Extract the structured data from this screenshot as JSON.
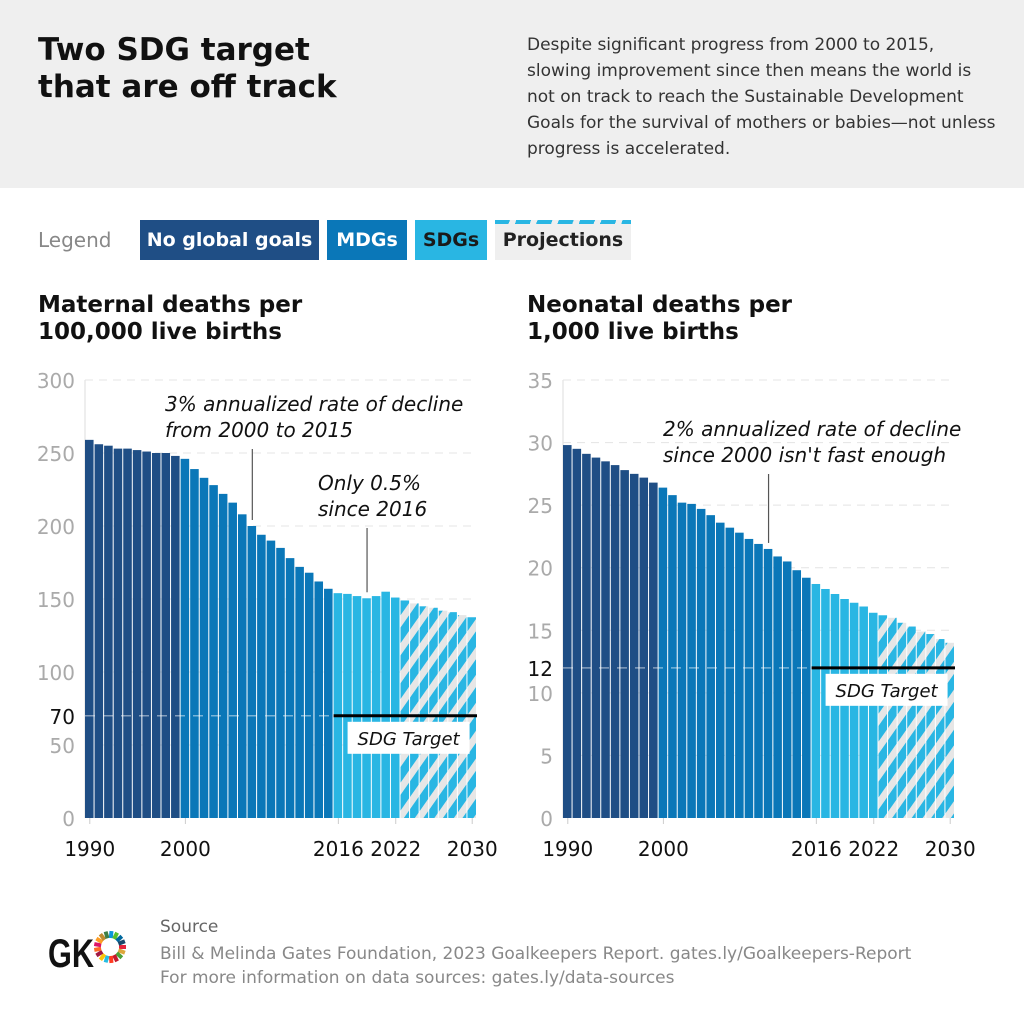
{
  "header": {
    "title": "Two SDG target that are off track",
    "description": "Despite significant progress from 2000 to 2015, slowing improvement since then means the world is not on track to reach the Sustainable Development Goals for the survival of mothers or babies—not unless progress is accelerated."
  },
  "legend": {
    "label": "Legend",
    "items": [
      {
        "label": "No global goals",
        "color": "#1f4e85"
      },
      {
        "label": "MDGs",
        "color": "#0a77b8"
      },
      {
        "label": "SDGs",
        "color": "#29b6e3"
      },
      {
        "label": "Projections",
        "color": "#29b6e3",
        "pattern": "hatched"
      }
    ]
  },
  "colors": {
    "no_goals": "#1f4e85",
    "mdgs": "#0a77b8",
    "sdgs": "#29b6e3",
    "projection_bg": "#e6e6e6",
    "target": "#000000"
  },
  "chart_data": [
    {
      "type": "bar",
      "title": "Maternal deaths per 100,000 live births",
      "x": [
        1990,
        1991,
        1992,
        1993,
        1994,
        1995,
        1996,
        1997,
        1998,
        1999,
        2000,
        2001,
        2002,
        2003,
        2004,
        2005,
        2006,
        2007,
        2008,
        2009,
        2010,
        2011,
        2012,
        2013,
        2014,
        2015,
        2016,
        2017,
        2018,
        2019,
        2020,
        2021,
        2022,
        2023,
        2024,
        2025,
        2026,
        2027,
        2028,
        2029,
        2030
      ],
      "values": [
        259,
        256,
        255,
        253,
        253,
        252,
        251,
        250,
        250,
        248,
        246,
        239,
        233,
        228,
        222,
        216,
        208,
        200,
        194,
        190,
        185,
        178,
        172,
        168,
        162,
        157,
        154,
        153.5,
        152,
        150.5,
        152,
        155,
        151,
        149,
        147,
        145,
        144,
        142,
        141,
        139,
        137.5
      ],
      "eras": {
        "no_goals": [
          1990,
          1999
        ],
        "mdgs": [
          2000,
          2015
        ],
        "sdgs": [
          2016,
          2022
        ],
        "projections": [
          2023,
          2030
        ]
      },
      "ylim": [
        0,
        300
      ],
      "yticks": [
        "0",
        "50",
        "100",
        "150",
        "200",
        "250",
        "300"
      ],
      "xticks": [
        "1990",
        "2000",
        "2016",
        "2022",
        "2030"
      ],
      "target": {
        "value": 70,
        "label": "70",
        "name": "SDG Target"
      },
      "annotations": [
        {
          "year": 2007,
          "text": [
            "3% annualized rate of decline",
            "from 2000 to 2015"
          ]
        },
        {
          "year": 2019,
          "text": [
            "Only 0.5%",
            "since 2016"
          ]
        }
      ],
      "grid": true
    },
    {
      "type": "bar",
      "title": "Neonatal deaths per 1,000 live births",
      "x": [
        1990,
        1991,
        1992,
        1993,
        1994,
        1995,
        1996,
        1997,
        1998,
        1999,
        2000,
        2001,
        2002,
        2003,
        2004,
        2005,
        2006,
        2007,
        2008,
        2009,
        2010,
        2011,
        2012,
        2013,
        2014,
        2015,
        2016,
        2017,
        2018,
        2019,
        2020,
        2021,
        2022,
        2023,
        2024,
        2025,
        2026,
        2027,
        2028,
        2029,
        2030
      ],
      "values": [
        29.8,
        29.5,
        29.1,
        28.8,
        28.5,
        28.2,
        27.8,
        27.5,
        27.2,
        26.8,
        26.4,
        25.8,
        25.2,
        25.1,
        24.7,
        24.2,
        23.6,
        23.2,
        22.8,
        22.3,
        21.9,
        21.5,
        20.9,
        20.5,
        19.8,
        19.2,
        18.7,
        18.3,
        17.9,
        17.5,
        17.2,
        16.9,
        16.4,
        16.2,
        16.0,
        15.6,
        15.3,
        14.9,
        14.7,
        14.3,
        14.0
      ],
      "eras": {
        "no_goals": [
          1990,
          1999
        ],
        "mdgs": [
          2000,
          2015
        ],
        "sdgs": [
          2016,
          2022
        ],
        "projections": [
          2023,
          2030
        ]
      },
      "ylim": [
        0,
        35
      ],
      "yticks": [
        "0",
        "5",
        "10",
        "15",
        "20",
        "25",
        "30",
        "35"
      ],
      "xticks": [
        "1990",
        "2000",
        "2016",
        "2022",
        "2030"
      ],
      "target": {
        "value": 12,
        "label": "12",
        "name": "SDG Target"
      },
      "annotations": [
        {
          "year": 2011,
          "text": [
            "2% annualized rate of decline",
            "since 2000 isn't fast enough"
          ]
        }
      ],
      "grid": true
    }
  ],
  "source": {
    "heading": "Source",
    "line1": "Bill & Melinda Gates Foundation, 2023 Goalkeepers Report. gates.ly/Goalkeepers-Report",
    "line2": "For more information on data sources: gates.ly/data-sources",
    "logo_text": "GK"
  }
}
